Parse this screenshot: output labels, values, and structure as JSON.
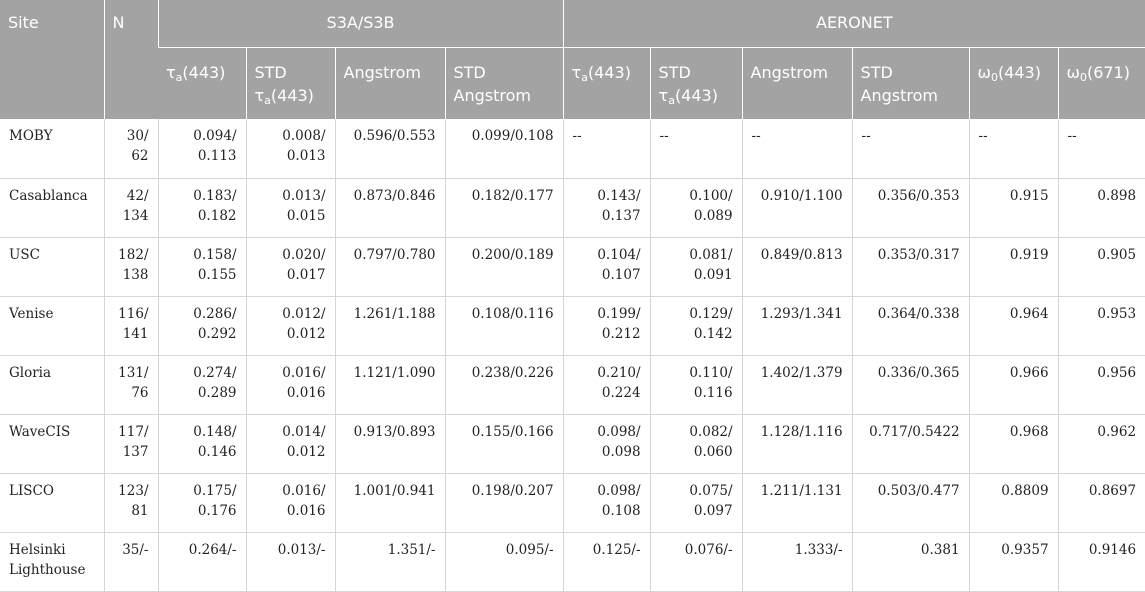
{
  "header": {
    "site": "Site",
    "n": "N",
    "group_s3": "S3A/S3B",
    "group_aeronet": "AERONET",
    "columns": [
      {
        "sym": "τ",
        "sub": "a",
        "rest": "(443)"
      },
      {
        "line1": "STD",
        "sym": "τ",
        "sub": "a",
        "rest": "(443)"
      },
      {
        "text": "Angstrom"
      },
      {
        "line1": "STD",
        "line2": "Angstrom"
      },
      {
        "sym": "τ",
        "sub": "a",
        "rest": "(443)"
      },
      {
        "line1": "STD",
        "sym": "τ",
        "sub": "a",
        "rest": "(443)"
      },
      {
        "text": "Angstrom"
      },
      {
        "line1": "STD",
        "line2": "Angstrom"
      },
      {
        "sym": "ω",
        "sub": "0",
        "rest": "(443)"
      },
      {
        "sym": "ω",
        "sub": "0",
        "rest": "(671)"
      }
    ]
  },
  "rows": [
    {
      "site": [
        "MOBY"
      ],
      "n": [
        "30/",
        "62"
      ],
      "tau_s3": [
        "0.094/",
        "0.113"
      ],
      "std_tau_s3": [
        "0.008/",
        "0.013"
      ],
      "ang_s3": [
        "0.596/0.553"
      ],
      "std_ang_s3": [
        "0.099/0.108"
      ],
      "tau_aer": [
        "--"
      ],
      "std_tau_aer": [
        "--"
      ],
      "ang_aer": [
        "--"
      ],
      "std_ang_aer": [
        "--"
      ],
      "w443": [
        "--"
      ],
      "w671": [
        "--"
      ]
    },
    {
      "site": [
        "Casablanca"
      ],
      "n": [
        "42/",
        "134"
      ],
      "tau_s3": [
        "0.183/",
        "0.182"
      ],
      "std_tau_s3": [
        "0.013/",
        "0.015"
      ],
      "ang_s3": [
        "0.873/0.846"
      ],
      "std_ang_s3": [
        "0.182/0.177"
      ],
      "tau_aer": [
        "0.143/",
        "0.137"
      ],
      "std_tau_aer": [
        "0.100/",
        "0.089"
      ],
      "ang_aer": [
        "0.910/1.100"
      ],
      "std_ang_aer": [
        "0.356/0.353"
      ],
      "w443": [
        "0.915"
      ],
      "w671": [
        "0.898"
      ]
    },
    {
      "site": [
        "USC"
      ],
      "n": [
        "182/",
        "138"
      ],
      "tau_s3": [
        "0.158/",
        "0.155"
      ],
      "std_tau_s3": [
        "0.020/",
        "0.017"
      ],
      "ang_s3": [
        "0.797/0.780"
      ],
      "std_ang_s3": [
        "0.200/0.189"
      ],
      "tau_aer": [
        "0.104/",
        "0.107"
      ],
      "std_tau_aer": [
        "0.081/",
        "0.091"
      ],
      "ang_aer": [
        "0.849/0.813"
      ],
      "std_ang_aer": [
        "0.353/0.317"
      ],
      "w443": [
        "0.919"
      ],
      "w671": [
        "0.905"
      ]
    },
    {
      "site": [
        "Venise"
      ],
      "n": [
        "116/",
        "141"
      ],
      "tau_s3": [
        "0.286/",
        "0.292"
      ],
      "std_tau_s3": [
        "0.012/",
        "0.012"
      ],
      "ang_s3": [
        "1.261/1.188"
      ],
      "std_ang_s3": [
        "0.108/0.116"
      ],
      "tau_aer": [
        "0.199/",
        "0.212"
      ],
      "std_tau_aer": [
        "0.129/",
        "0.142"
      ],
      "ang_aer": [
        "1.293/1.341"
      ],
      "std_ang_aer": [
        "0.364/0.338"
      ],
      "w443": [
        "0.964"
      ],
      "w671": [
        "0.953"
      ]
    },
    {
      "site": [
        "Gloria"
      ],
      "n": [
        "131/",
        "76"
      ],
      "tau_s3": [
        "0.274/",
        "0.289"
      ],
      "std_tau_s3": [
        "0.016/",
        "0.016"
      ],
      "ang_s3": [
        "1.121/1.090"
      ],
      "std_ang_s3": [
        "0.238/0.226"
      ],
      "tau_aer": [
        "0.210/",
        "0.224"
      ],
      "std_tau_aer": [
        "0.110/",
        "0.116"
      ],
      "ang_aer": [
        "1.402/1.379"
      ],
      "std_ang_aer": [
        "0.336/0.365"
      ],
      "w443": [
        "0.966"
      ],
      "w671": [
        "0.956"
      ]
    },
    {
      "site": [
        "WaveCIS"
      ],
      "n": [
        "117/",
        "137"
      ],
      "tau_s3": [
        "0.148/",
        "0.146"
      ],
      "std_tau_s3": [
        "0.014/",
        "0.012"
      ],
      "ang_s3": [
        "0.913/0.893"
      ],
      "std_ang_s3": [
        "0.155/0.166"
      ],
      "tau_aer": [
        "0.098/",
        "0.098"
      ],
      "std_tau_aer": [
        "0.082/",
        "0.060"
      ],
      "ang_aer": [
        "1.128/1.116"
      ],
      "std_ang_aer": [
        "0.717/0.5422"
      ],
      "w443": [
        "0.968"
      ],
      "w671": [
        "0.962"
      ]
    },
    {
      "site": [
        "LISCO"
      ],
      "n": [
        "123/",
        "81"
      ],
      "tau_s3": [
        "0.175/",
        "0.176"
      ],
      "std_tau_s3": [
        "0.016/",
        "0.016"
      ],
      "ang_s3": [
        "1.001/0.941"
      ],
      "std_ang_s3": [
        "0.198/0.207"
      ],
      "tau_aer": [
        "0.098/",
        "0.108"
      ],
      "std_tau_aer": [
        "0.075/",
        "0.097"
      ],
      "ang_aer": [
        "1.211/1.131"
      ],
      "std_ang_aer": [
        "0.503/0.477"
      ],
      "w443": [
        "0.8809"
      ],
      "w671": [
        "0.8697"
      ]
    },
    {
      "site": [
        "Helsinki",
        "Lighthouse"
      ],
      "n": [
        "35/-"
      ],
      "tau_s3": [
        "0.264/-"
      ],
      "std_tau_s3": [
        "0.013/-"
      ],
      "ang_s3": [
        "1.351/-"
      ],
      "std_ang_s3": [
        "0.095/-"
      ],
      "tau_aer": [
        "0.125/-"
      ],
      "std_tau_aer": [
        "0.076/-"
      ],
      "ang_aer": [
        "1.333/-"
      ],
      "std_ang_aer": [
        "0.381"
      ],
      "w443": [
        "0.9357"
      ],
      "w671": [
        "0.9146"
      ]
    }
  ]
}
